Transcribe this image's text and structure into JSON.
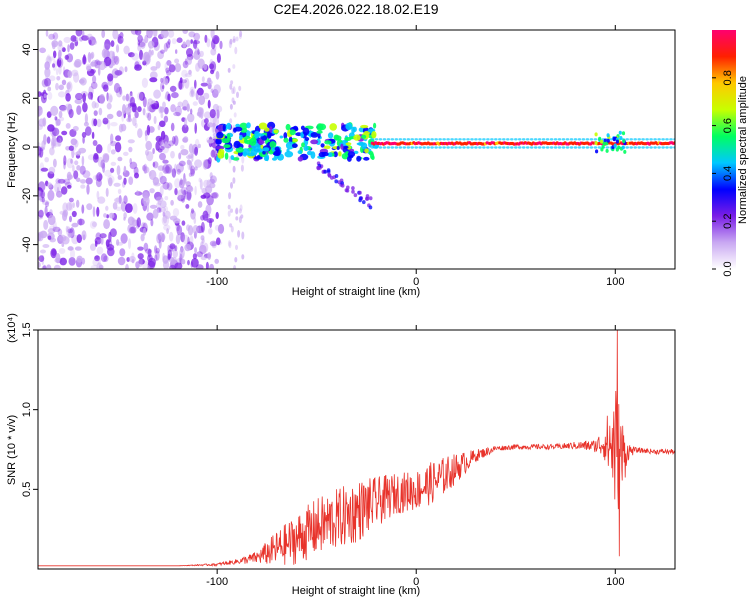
{
  "title": "C2E4.2026.022.18.02.E19",
  "chart_data": [
    {
      "type": "heatmap",
      "name": "spectrogram",
      "xlabel": "Height of straight line (km)",
      "ylabel": "Frequency (Hz)",
      "xlim": [
        -190,
        130
      ],
      "ylim": [
        -50,
        48
      ],
      "xticks": [
        -100,
        0,
        100
      ],
      "yticks": [
        -40,
        -20,
        0,
        20,
        40
      ],
      "colorbar": {
        "label": "Normalized spectral amplitude",
        "range": [
          0,
          1
        ],
        "ticks": [
          "0.0",
          "0.2",
          "0.4",
          "0.6",
          "0.8"
        ],
        "colors": [
          "#ffffff",
          "#c9a8f2",
          "#7a1ee6",
          "#0000ff",
          "#00c8ff",
          "#00ff60",
          "#c8ff00",
          "#ffc800",
          "#ff2000",
          "#ff006e"
        ]
      },
      "features": [
        {
          "name": "scattered noise",
          "x_range": [
            -190,
            -100
          ],
          "freq_range": [
            -50,
            48
          ],
          "amplitude": "0.1-0.2"
        },
        {
          "name": "broadband echo",
          "x_range": [
            -100,
            -20
          ],
          "freq_range": [
            -20,
            10
          ],
          "amplitude": "0.2-0.6"
        },
        {
          "name": "narrow line",
          "x_range": [
            -20,
            130
          ],
          "freq_center": 1.5,
          "amplitude": "0.9-1.0"
        },
        {
          "name": "disturbance",
          "x_range": [
            90,
            105
          ],
          "freq_range": [
            -2,
            6
          ],
          "amplitude": "0.4-0.7"
        }
      ]
    },
    {
      "type": "line",
      "name": "snr",
      "xlabel": "Height of straight line (km)",
      "ylabel": "SNR (10 * v/v)",
      "y_multiplier": "(x10⁴)",
      "xlim": [
        -190,
        130
      ],
      "ylim": [
        0,
        1.5
      ],
      "xticks": [
        -100,
        0,
        100
      ],
      "yticks": [
        "0.5",
        "1.0",
        "1.5"
      ],
      "color": "#e8332b",
      "envelope": {
        "x": [
          -190,
          -120,
          -100,
          -90,
          -80,
          -70,
          -60,
          -50,
          -40,
          -30,
          -20,
          -10,
          0,
          10,
          20,
          30,
          40,
          50,
          60,
          70,
          80,
          90,
          95,
          100,
          103,
          106,
          110,
          120,
          130
        ],
        "y": [
          0.02,
          0.02,
          0.03,
          0.05,
          0.08,
          0.15,
          0.22,
          0.3,
          0.35,
          0.4,
          0.45,
          0.5,
          0.52,
          0.58,
          0.65,
          0.72,
          0.76,
          0.77,
          0.77,
          0.77,
          0.78,
          0.78,
          0.82,
          0.85,
          0.75,
          0.75,
          0.75,
          0.74,
          0.74
        ],
        "spread": [
          0,
          0,
          0.01,
          0.02,
          0.05,
          0.14,
          0.2,
          0.23,
          0.24,
          0.25,
          0.2,
          0.16,
          0.16,
          0.17,
          0.12,
          0.05,
          0.02,
          0.02,
          0.02,
          0.02,
          0.03,
          0.05,
          0.15,
          0.55,
          0.4,
          0.08,
          0.02,
          0.02,
          0.02
        ]
      },
      "peak": {
        "x": 101,
        "y": 1.52
      },
      "trough": {
        "x": 102,
        "y": 0.08
      }
    }
  ]
}
